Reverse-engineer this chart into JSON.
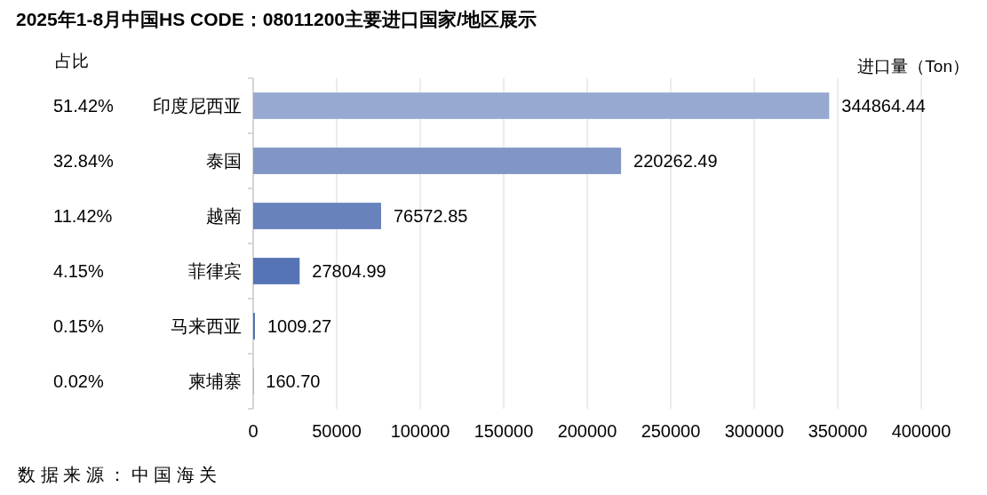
{
  "chart_data": {
    "type": "bar",
    "orientation": "horizontal",
    "title": "2025年1-8月中国HS CODE：08011200主要进口国家/地区展示",
    "xlabel": "进口量（Ton）",
    "categories": [
      "印度尼西亚",
      "泰国",
      "越南",
      "菲律宾",
      "马来西亚",
      "柬埔寨"
    ],
    "values": [
      344864.44,
      220262.49,
      76572.85,
      27804.99,
      1009.27,
      160.7
    ],
    "value_labels": [
      "344864.44",
      "220262.49",
      "76572.85",
      "27804.99",
      "1009.27",
      "160.70"
    ],
    "colors": [
      "#97a9d0",
      "#8195c6",
      "#6882bc",
      "#5673b5",
      "#4a6bb0",
      "#4a6bb0"
    ],
    "xlim": [
      0,
      400000
    ],
    "xticks": [
      0,
      50000,
      100000,
      150000,
      200000,
      250000,
      300000,
      350000,
      400000
    ],
    "grid": "x",
    "annotations": [
      "占比",
      "51.42%",
      "32.84%",
      "11.42%",
      "4.15%",
      "0.15%",
      "0.02%",
      "数据来源：中国海关"
    ]
  }
}
